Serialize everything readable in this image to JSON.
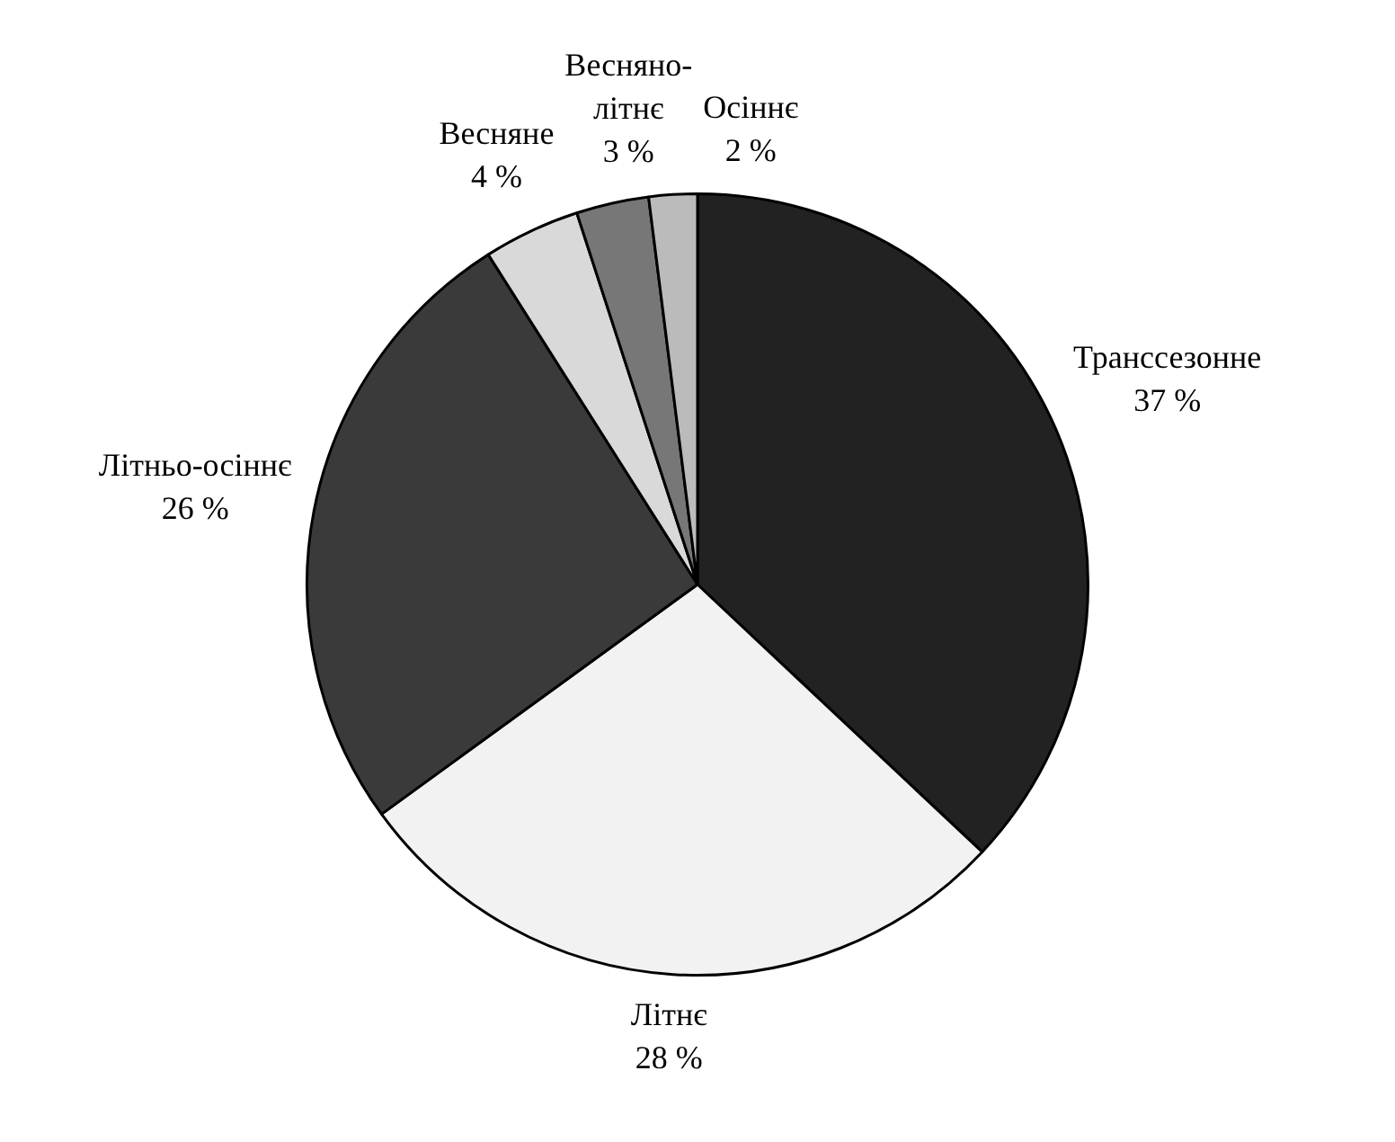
{
  "chart_data": {
    "type": "pie",
    "categories": [
      "Транссезонне",
      "Літнє",
      "Літньо-осіннє",
      "Весняне",
      "Весняно-літнє",
      "Осіннє"
    ],
    "values": [
      37,
      28,
      26,
      4,
      3,
      2
    ],
    "value_labels": [
      "37 %",
      "28 %",
      "26 %",
      "4 %",
      "3 %",
      "2 %"
    ],
    "colors": [
      "#222222",
      "#f2f2f2",
      "#3a3a3a",
      "#d9d9d9",
      "#777777",
      "#bbbbbb"
    ],
    "legend": false
  }
}
